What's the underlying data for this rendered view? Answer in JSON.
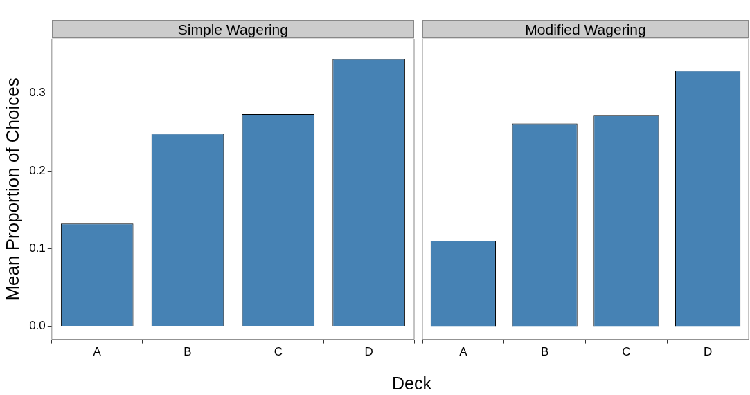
{
  "chart_data": [
    {
      "type": "bar",
      "title": "Simple Wagering",
      "ylabel": "Mean Proportion of Choices",
      "xlabel": "Deck",
      "categories": [
        "A",
        "B",
        "C",
        "D"
      ],
      "values": [
        0.132,
        0.248,
        0.273,
        0.344
      ],
      "color": "#4682b4",
      "ylim": [
        -0.017,
        0.37
      ],
      "yticks": [
        {
          "value": 0,
          "label": "0.0"
        },
        0.1,
        0.2,
        0.3
      ],
      "grid": false,
      "legend": false
    },
    {
      "type": "bar",
      "title": "Modified Wagering",
      "categories": [
        "A",
        "B",
        "C",
        "D"
      ],
      "values": [
        0.11,
        0.261,
        0.272,
        0.329
      ],
      "color": "#4682b4",
      "ylim": [
        -0.017,
        0.37
      ],
      "yticks": [
        0,
        0.1,
        0.2,
        0.3
      ],
      "grid": false,
      "legend": false,
      "tick_labels": "x"
    }
  ]
}
